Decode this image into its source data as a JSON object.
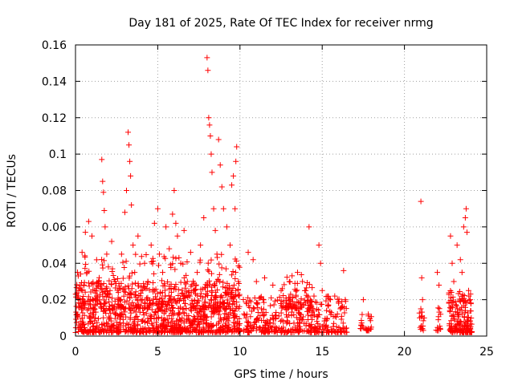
{
  "chart_data": {
    "type": "scatter",
    "title": "Day 181 of 2025, Rate Of TEC Index for receiver nrmg",
    "xlabel": "GPS time / hours",
    "ylabel": "ROTI / TECUs",
    "xlim": [
      0,
      25
    ],
    "ylim": [
      0,
      0.16
    ],
    "xticks": [
      0,
      5,
      10,
      15,
      20,
      25
    ],
    "xtick_labels": [
      "0",
      "5",
      "10",
      "15",
      "20",
      "25"
    ],
    "yticks": [
      0,
      0.02,
      0.04,
      0.06,
      0.08,
      0.1,
      0.12,
      0.14,
      0.16
    ],
    "ytick_labels": [
      "0",
      "0.02",
      "0.04",
      "0.06",
      "0.08",
      "0.1",
      "0.12",
      "0.14",
      "0.16"
    ],
    "grid": true,
    "marker": "+",
    "color": "#ff0000",
    "series": [
      {
        "name": "ROTI",
        "points": [
          [
            0.1,
            0.012
          ],
          [
            0.2,
            0.025
          ],
          [
            0.3,
            0.008
          ],
          [
            0.4,
            0.046
          ],
          [
            0.5,
            0.018
          ],
          [
            0.6,
            0.057
          ],
          [
            0.7,
            0.035
          ],
          [
            0.8,
            0.063
          ],
          [
            0.9,
            0.02
          ],
          [
            1.0,
            0.055
          ],
          [
            1.1,
            0.015
          ],
          [
            1.2,
            0.01
          ],
          [
            1.3,
            0.022
          ],
          [
            1.4,
            0.03
          ],
          [
            1.5,
            0.018
          ],
          [
            1.6,
            0.097
          ],
          [
            1.65,
            0.085
          ],
          [
            1.7,
            0.079
          ],
          [
            1.75,
            0.069
          ],
          [
            1.8,
            0.06
          ],
          [
            1.9,
            0.045
          ],
          [
            2.0,
            0.038
          ],
          [
            2.1,
            0.025
          ],
          [
            2.2,
            0.052
          ],
          [
            2.3,
            0.015
          ],
          [
            2.4,
            0.03
          ],
          [
            2.6,
            0.02
          ],
          [
            2.8,
            0.045
          ],
          [
            3.0,
            0.068
          ],
          [
            3.1,
            0.08
          ],
          [
            3.2,
            0.112
          ],
          [
            3.25,
            0.105
          ],
          [
            3.3,
            0.096
          ],
          [
            3.35,
            0.088
          ],
          [
            3.4,
            0.072
          ],
          [
            3.5,
            0.05
          ],
          [
            3.6,
            0.035
          ],
          [
            3.8,
            0.055
          ],
          [
            4.0,
            0.025
          ],
          [
            4.2,
            0.04
          ],
          [
            4.4,
            0.03
          ],
          [
            4.6,
            0.05
          ],
          [
            4.8,
            0.062
          ],
          [
            5.0,
            0.07
          ],
          [
            5.1,
            0.045
          ],
          [
            5.3,
            0.035
          ],
          [
            5.5,
            0.06
          ],
          [
            5.7,
            0.048
          ],
          [
            5.9,
            0.067
          ],
          [
            6.0,
            0.08
          ],
          [
            6.1,
            0.062
          ],
          [
            6.2,
            0.055
          ],
          [
            6.4,
            0.04
          ],
          [
            6.6,
            0.058
          ],
          [
            6.8,
            0.03
          ],
          [
            7.0,
            0.046
          ],
          [
            7.2,
            0.025
          ],
          [
            7.4,
            0.035
          ],
          [
            7.6,
            0.05
          ],
          [
            7.8,
            0.065
          ],
          [
            8.0,
            0.153
          ],
          [
            8.05,
            0.146
          ],
          [
            8.1,
            0.12
          ],
          [
            8.15,
            0.116
          ],
          [
            8.2,
            0.11
          ],
          [
            8.25,
            0.1
          ],
          [
            8.3,
            0.09
          ],
          [
            8.4,
            0.07
          ],
          [
            8.5,
            0.058
          ],
          [
            8.6,
            0.045
          ],
          [
            8.7,
            0.108
          ],
          [
            8.8,
            0.094
          ],
          [
            8.9,
            0.082
          ],
          [
            9.0,
            0.07
          ],
          [
            9.2,
            0.06
          ],
          [
            9.4,
            0.05
          ],
          [
            9.5,
            0.083
          ],
          [
            9.6,
            0.088
          ],
          [
            9.7,
            0.07
          ],
          [
            9.75,
            0.096
          ],
          [
            9.8,
            0.104
          ],
          [
            9.9,
            0.03
          ],
          [
            10.5,
            0.046
          ],
          [
            10.8,
            0.042
          ],
          [
            11.0,
            0.03
          ],
          [
            11.5,
            0.032
          ],
          [
            12.0,
            0.028
          ],
          [
            12.5,
            0.025
          ],
          [
            13.0,
            0.03
          ],
          [
            13.5,
            0.035
          ],
          [
            13.8,
            0.03
          ],
          [
            14.0,
            0.025
          ],
          [
            14.2,
            0.06
          ],
          [
            14.5,
            0.022
          ],
          [
            14.8,
            0.05
          ],
          [
            14.9,
            0.04
          ],
          [
            15.0,
            0.025
          ],
          [
            15.5,
            0.02
          ],
          [
            16.0,
            0.018
          ],
          [
            16.3,
            0.036
          ],
          [
            16.4,
            0.02
          ],
          [
            17.5,
            0.02
          ],
          [
            17.8,
            0.012
          ],
          [
            21.0,
            0.074
          ],
          [
            21.05,
            0.032
          ],
          [
            21.1,
            0.02
          ],
          [
            21.2,
            0.01
          ],
          [
            22.0,
            0.035
          ],
          [
            22.1,
            0.028
          ],
          [
            22.2,
            0.012
          ],
          [
            22.8,
            0.055
          ],
          [
            22.9,
            0.04
          ],
          [
            23.0,
            0.03
          ],
          [
            23.2,
            0.05
          ],
          [
            23.4,
            0.042
          ],
          [
            23.5,
            0.035
          ],
          [
            23.6,
            0.06
          ],
          [
            23.7,
            0.065
          ],
          [
            23.75,
            0.07
          ],
          [
            23.8,
            0.057
          ],
          [
            23.9,
            0.025
          ],
          [
            24.0,
            0.02
          ]
        ],
        "dense_clusters": [
          {
            "x_range": [
              0.0,
              10.0
            ],
            "y_range": [
              0.002,
              0.03
            ],
            "count": 900
          },
          {
            "x_range": [
              0.0,
              10.0
            ],
            "y_range": [
              0.015,
              0.045
            ],
            "count": 300
          },
          {
            "x_range": [
              10.2,
              16.5
            ],
            "y_range": [
              0.002,
              0.022
            ],
            "count": 380
          },
          {
            "x_range": [
              12.5,
              14.5
            ],
            "y_range": [
              0.015,
              0.035
            ],
            "count": 60
          },
          {
            "x_range": [
              17.3,
              18.0
            ],
            "y_range": [
              0.003,
              0.013
            ],
            "count": 25
          },
          {
            "x_range": [
              20.9,
              21.2
            ],
            "y_range": [
              0.003,
              0.016
            ],
            "count": 15
          },
          {
            "x_range": [
              21.9,
              22.2
            ],
            "y_range": [
              0.003,
              0.016
            ],
            "count": 12
          },
          {
            "x_range": [
              22.7,
              24.1
            ],
            "y_range": [
              0.002,
              0.025
            ],
            "count": 160
          }
        ]
      }
    ]
  }
}
